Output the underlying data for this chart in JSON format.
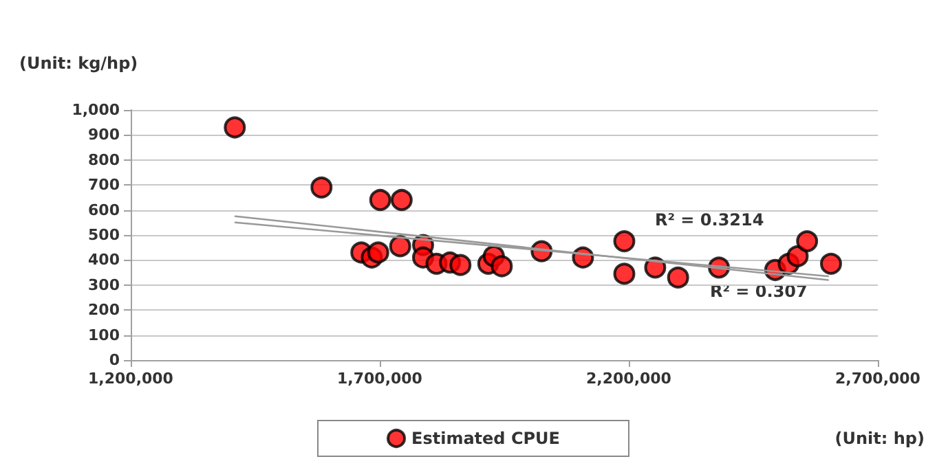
{
  "chart_data": {
    "type": "scatter",
    "ylabel": "(Unit: kg/hp)",
    "xlabel": "(Unit: hp)",
    "xlim": [
      1200000,
      2700000
    ],
    "xticks": [
      {
        "value": 1200000,
        "label": "1,200,000"
      },
      {
        "value": 1700000,
        "label": "1,700,000"
      },
      {
        "value": 2200000,
        "label": "2,200,000"
      },
      {
        "value": 2700000,
        "label": "2,700,000"
      }
    ],
    "ylim": [
      0,
      1000
    ],
    "yticks": [
      0,
      100,
      200,
      300,
      400,
      500,
      600,
      700,
      800,
      900,
      {
        "value": 1000,
        "label": "1,000"
      }
    ],
    "grid": "y",
    "legend": "bottom",
    "marker": "circle",
    "series": [
      {
        "name": "Estimated CPUE",
        "color": "#ff0000",
        "x": [
          1409000,
          1583000,
          1701000,
          1744000,
          1663000,
          1684000,
          1697000,
          1741000,
          1787000,
          1787000,
          1814000,
          1841000,
          1862000,
          1918000,
          1929000,
          1945000,
          2025000,
          2108000,
          2191000,
          2191000,
          2253000,
          2299000,
          2381000,
          2494000,
          2521000,
          2539000,
          2558000,
          2606000
        ],
        "values": [
          930,
          690,
          640,
          640,
          430,
          410,
          430,
          455,
          460,
          410,
          385,
          390,
          380,
          385,
          415,
          375,
          435,
          410,
          475,
          345,
          370,
          330,
          370,
          360,
          385,
          415,
          475,
          385
        ]
      },
      {
        "type": "line",
        "color": "#999999",
        "marker": "none",
        "line_style": "solid",
        "x": [
          1410000,
          2600000
        ],
        "values": [
          575,
          320
        ]
      },
      {
        "type": "line",
        "color": "#999999",
        "marker": "none",
        "line_style": "solid",
        "x": [
          1410000,
          2600000
        ],
        "values": [
          550,
          335
        ]
      }
    ],
    "annotations": [
      "R² = 0.3214",
      "R² = 0.307"
    ]
  }
}
